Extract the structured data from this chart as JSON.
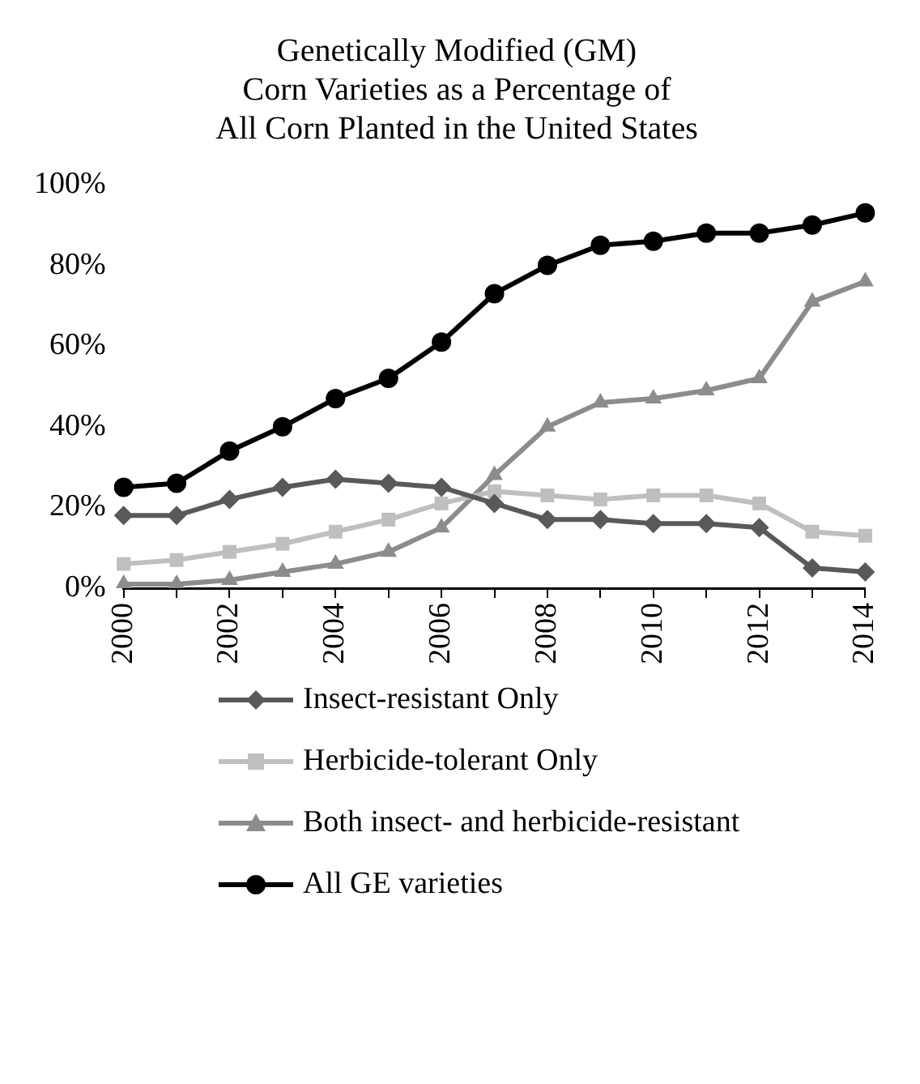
{
  "chart_data": {
    "type": "line",
    "title": "Genetically Modified (GM)\nCorn Varieties as a Percentage of\nAll Corn Planted in the United States",
    "categories": [
      "2000",
      null,
      "2002",
      null,
      "2004",
      null,
      "2006",
      null,
      "2008",
      null,
      "2010",
      null,
      "2012",
      null,
      "2014"
    ],
    "series": [
      {
        "name": "Insect-resistant Only",
        "color": "#595959",
        "marker": "diamond",
        "values": [
          18,
          18,
          22,
          25,
          27,
          26,
          25,
          21,
          17,
          17,
          16,
          16,
          15,
          5,
          4
        ]
      },
      {
        "name": "Herbicide-tolerant Only",
        "color": "#bfbfbf",
        "marker": "square",
        "values": [
          6,
          7,
          9,
          11,
          14,
          17,
          21,
          24,
          23,
          22,
          23,
          23,
          21,
          14,
          13
        ]
      },
      {
        "name": "Both insect- and herbicide-resistant",
        "color": "#8c8c8c",
        "marker": "triangle",
        "values": [
          1,
          1,
          2,
          4,
          6,
          9,
          15,
          28,
          40,
          46,
          47,
          49,
          52,
          71,
          76
        ]
      },
      {
        "name": "All GE varieties",
        "color": "#000000",
        "marker": "circle",
        "values": [
          25,
          26,
          34,
          40,
          47,
          52,
          61,
          73,
          80,
          85,
          86,
          88,
          88,
          90,
          93
        ]
      }
    ],
    "ylim": [
      0,
      100
    ],
    "yticks": [
      {
        "value": 0,
        "label": "0%"
      },
      {
        "value": 20,
        "label": "20%"
      },
      {
        "value": 40,
        "label": "40%"
      },
      {
        "value": 60,
        "label": "60%"
      },
      {
        "value": 80,
        "label": "80%"
      },
      {
        "value": 100,
        "label": "100%"
      }
    ],
    "grid": false,
    "legend": "bottom",
    "line_style": "solid"
  }
}
